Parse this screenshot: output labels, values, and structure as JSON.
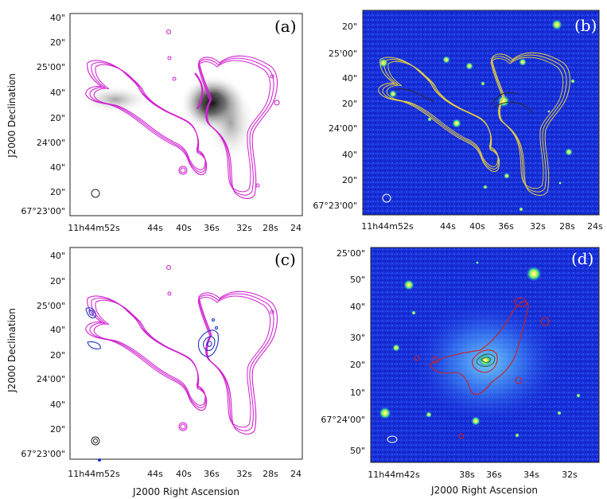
{
  "figure": {
    "xlabel": "J2000 Right Ascension",
    "ylabel": "J2000 Declination"
  },
  "colors": {
    "magenta_contour": "#d020d0",
    "yellow_contour": "#e8d040",
    "blue_contour": "#2030c0",
    "red_contour": "#cc2020",
    "optical_background": "#1a35e0"
  },
  "panels": [
    {
      "label": "(a)",
      "description_kind": "radio grayscale with contours",
      "y_ticks": [
        "40\"",
        "20\"",
        "25'00\"",
        "40\"",
        "20\"",
        "24'00\"",
        "40\"",
        "20\"",
        "67°23'00\""
      ],
      "x_ticks": [
        "11h44m52s",
        "44s",
        "40s",
        "36s",
        "32s",
        "28s",
        "24"
      ]
    },
    {
      "label": "(b)",
      "description_kind": "optical with contours",
      "y_ticks": [
        "20\"",
        "25'00\"",
        "40\"",
        "20\"",
        "24'00\"",
        "40\"",
        "20\"",
        "67°23'00\""
      ],
      "x_ticks": [
        "11h44m52s",
        "44s",
        "40s",
        "36s",
        "32s",
        "28s",
        "24s"
      ]
    },
    {
      "label": "(c)",
      "description_kind": "radio contours",
      "y_ticks": [
        "40\"",
        "20\"",
        "25'00\"",
        "40\"",
        "20\"",
        "24'00\"",
        "40\"",
        "20\"",
        "67°23'00\""
      ],
      "x_ticks": [
        "11h44m52s",
        "44s",
        "40s",
        "36s",
        "32s",
        "28s",
        "24"
      ]
    },
    {
      "label": "(d)",
      "description_kind": "optical zoom with contours",
      "y_ticks": [
        "25'00\"",
        "50\"",
        "40\"",
        "30\"",
        "20\"",
        "10\"",
        "67°24'00\"",
        "50\""
      ],
      "x_ticks": [
        "11h44m42s",
        "38s",
        "36s",
        "34s",
        "32s"
      ]
    }
  ],
  "chart_data": [
    {
      "type": "other",
      "panel": "(a)",
      "x_axis": "J2000 Right Ascension (11h44m24s – 11h44m54s)",
      "y_axis": "J2000 Declination (67°22'56\" – 67°25'50\")",
      "x_ticks": [
        "11h44m52s",
        "44s",
        "40s",
        "36s",
        "32s",
        "28s",
        "24"
      ],
      "y_ticks": [
        "40\"",
        "20\"",
        "25'00\"",
        "40\"",
        "20\"",
        "24'00\"",
        "40\"",
        "20\"",
        "67°23'00\""
      ]
    },
    {
      "type": "other",
      "panel": "(b)",
      "x_ticks": [
        "11h44m52s",
        "44s",
        "40s",
        "36s",
        "32s",
        "28s",
        "24s"
      ],
      "y_ticks": [
        "20\"",
        "25'00\"",
        "40\"",
        "20\"",
        "24'00\"",
        "40\"",
        "20\"",
        "67°23'00\""
      ]
    },
    {
      "type": "other",
      "panel": "(c)",
      "x_ticks": [
        "11h44m52s",
        "44s",
        "40s",
        "36s",
        "32s",
        "28s",
        "24"
      ],
      "y_ticks": [
        "40\"",
        "20\"",
        "25'00\"",
        "40\"",
        "20\"",
        "24'00\"",
        "40\"",
        "20\"",
        "67°23'00\""
      ]
    },
    {
      "type": "other",
      "panel": "(d)",
      "x_ticks": [
        "11h44m42s",
        "38s",
        "36s",
        "34s",
        "32s"
      ],
      "y_ticks": [
        "25'00\"",
        "50\"",
        "40\"",
        "30\"",
        "20\"",
        "10\"",
        "67°24'00\"",
        "50\""
      ]
    }
  ]
}
